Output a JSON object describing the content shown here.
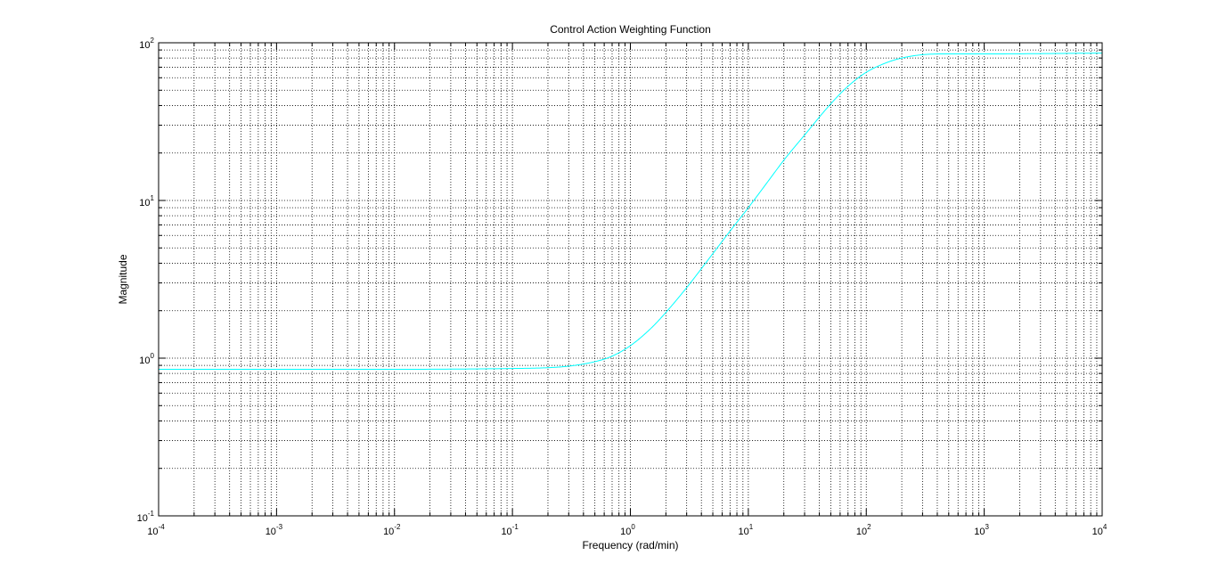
{
  "chart_data": {
    "type": "line",
    "title": "Control Action Weighting Function",
    "xlabel": "Frequency (rad/min)",
    "ylabel": "Magnitude",
    "xscale": "log",
    "yscale": "log",
    "xlim": [
      0.0001,
      10000
    ],
    "ylim": [
      0.1,
      100
    ],
    "grid": true,
    "grid_minor": true,
    "x_tick_labels": [
      {
        "base": "10",
        "exp": "-4",
        "value": 0.0001
      },
      {
        "base": "10",
        "exp": "-3",
        "value": 0.001
      },
      {
        "base": "10",
        "exp": "-2",
        "value": 0.01
      },
      {
        "base": "10",
        "exp": "-1",
        "value": 0.1
      },
      {
        "base": "10",
        "exp": "0",
        "value": 1
      },
      {
        "base": "10",
        "exp": "1",
        "value": 10
      },
      {
        "base": "10",
        "exp": "2",
        "value": 100
      },
      {
        "base": "10",
        "exp": "3",
        "value": 1000
      },
      {
        "base": "10",
        "exp": "4",
        "value": 10000
      }
    ],
    "y_tick_labels": [
      {
        "base": "10",
        "exp": "-1",
        "value": 0.1
      },
      {
        "base": "10",
        "exp": "0",
        "value": 1
      },
      {
        "base": "10",
        "exp": "1",
        "value": 10
      },
      {
        "base": "10",
        "exp": "2",
        "value": 100
      }
    ],
    "series": [
      {
        "color": "#00ffff",
        "x": [
          0.0001,
          0.001,
          0.01,
          0.1,
          0.2,
          0.3,
          0.5,
          0.7,
          1,
          1.5,
          2,
          3,
          5,
          7,
          10,
          15,
          20,
          30,
          50,
          70,
          100,
          150,
          200,
          300,
          500,
          1000,
          10000
        ],
        "y": [
          0.85,
          0.85,
          0.85,
          0.86,
          0.87,
          0.89,
          0.95,
          1.03,
          1.2,
          1.55,
          1.95,
          2.8,
          4.6,
          6.4,
          9.0,
          13.5,
          18,
          26,
          41,
          53,
          65,
          75,
          80,
          84,
          85,
          85,
          86
        ]
      }
    ]
  }
}
